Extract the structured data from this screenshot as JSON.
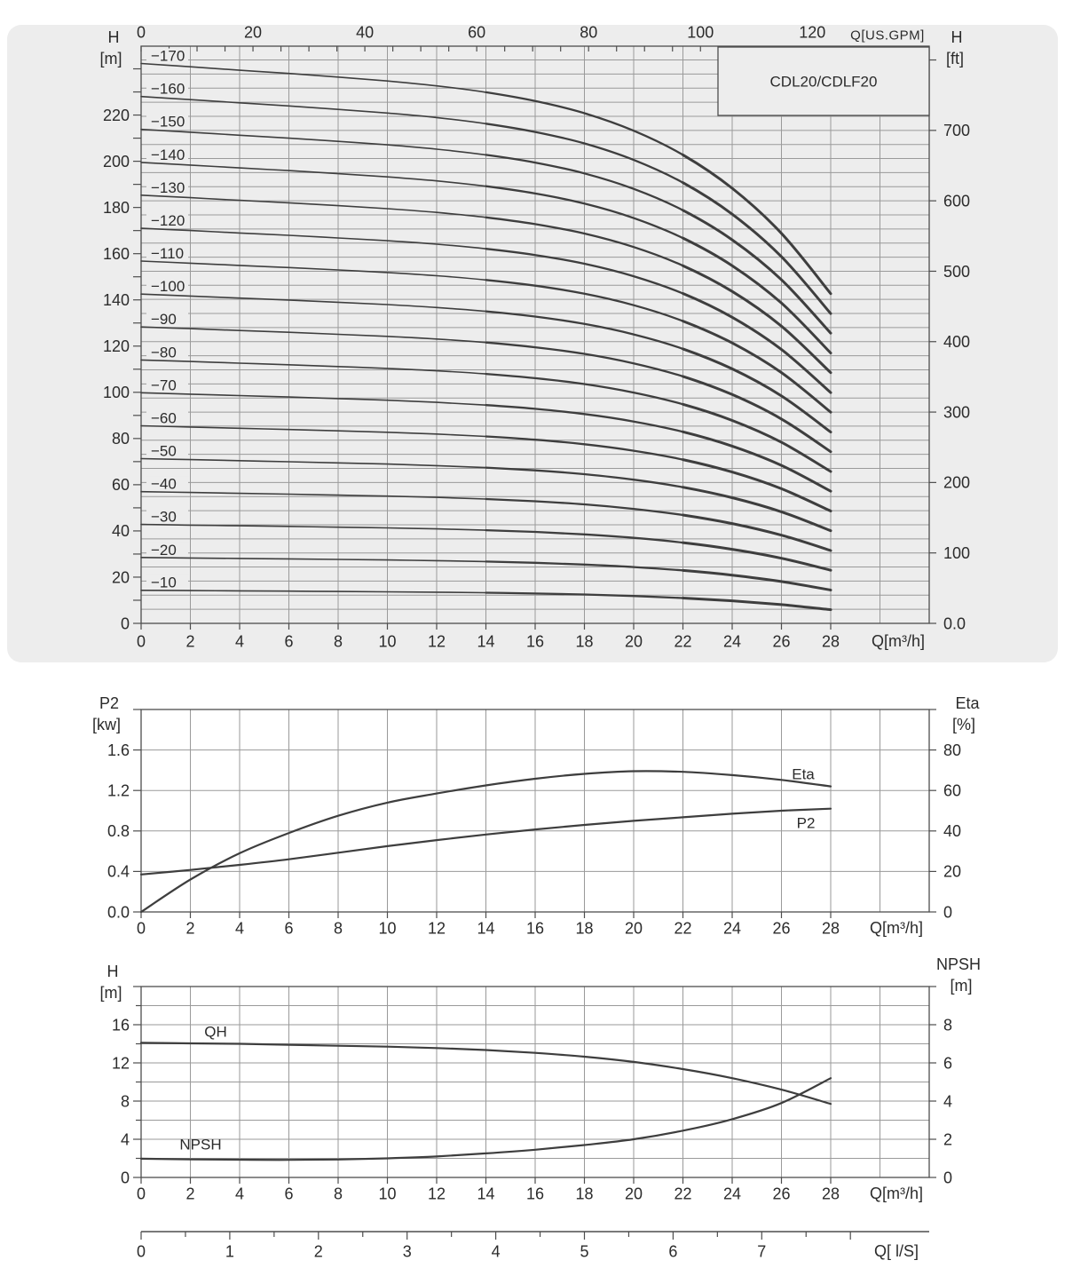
{
  "colors": {
    "page_bg": "#ffffff",
    "panel_bg": "#ededed",
    "grid": "#9a9a9a",
    "frame": "#4d4d4d",
    "curve": "#3e3e3e",
    "text": "#2b2b2b"
  },
  "labels": {
    "model": "CDL20/CDLF20",
    "h_left_1": "H",
    "h_left_2": "[m]",
    "gpm_title": "Q[US.GPM]",
    "h_right_1": "H",
    "h_right_2": "[ft]",
    "q_m3h": "Q[m³/h]",
    "p2_1": "P2",
    "p2_2": "[kw]",
    "eta_1": "Eta",
    "eta_2": "[%]",
    "eta_curve": "Eta",
    "p2_curve": "P2",
    "h_bottom_1": "H",
    "h_bottom_2": "[m]",
    "npsh_1": "NPSH",
    "npsh_2": "[m]",
    "qh_curve": "QH",
    "npsh_curve": "NPSH",
    "ls_title": "Q[ l/S]"
  },
  "chart_data": [
    {
      "id": "main_qh_family",
      "type": "line",
      "title": "CDL20/CDLF20",
      "x_axis_bottom": {
        "label": "Q[m³/h]",
        "ticks": [
          0,
          2,
          4,
          6,
          8,
          10,
          12,
          14,
          16,
          18,
          20,
          22,
          24,
          26,
          28
        ],
        "range": [
          0,
          32
        ],
        "grid_step": 2
      },
      "x_axis_top": {
        "label": "Q[US.GPM]",
        "ticks": [
          0,
          20,
          40,
          60,
          80,
          100,
          120
        ],
        "minor_step": 5,
        "max_tick": 140,
        "range": [
          0,
          140.9
        ]
      },
      "y_axis_left": {
        "label": "H [m]",
        "ticks": [
          0,
          20,
          40,
          60,
          80,
          100,
          120,
          140,
          160,
          180,
          200,
          220
        ],
        "minor_step": 10,
        "max_tick": 240,
        "range": [
          0,
          250
        ]
      },
      "y_axis_right": {
        "label": "H [ft]",
        "tick_labels": [
          "0.0",
          "100",
          "200",
          "300",
          "400",
          "500",
          "600",
          "700"
        ],
        "tick_step": 100,
        "max_tick": 800,
        "range": [
          0,
          820
        ],
        "grid_step_ft": 20
      },
      "q_samples": [
        0,
        2,
        4,
        6,
        8,
        10,
        12,
        14,
        16,
        18,
        20,
        22,
        24,
        26,
        28
      ],
      "drop_fraction": [
        0,
        0.014,
        0.029,
        0.043,
        0.059,
        0.076,
        0.097,
        0.125,
        0.163,
        0.216,
        0.292,
        0.397,
        0.542,
        0.738,
        1.0
      ],
      "series": [
        {
          "label": "−170",
          "h0": 242.3,
          "h_end": 142.7
        },
        {
          "label": "−160",
          "h0": 228.0,
          "h_end": 134.1
        },
        {
          "label": "−150",
          "h0": 213.8,
          "h_end": 125.6
        },
        {
          "label": "−140",
          "h0": 199.5,
          "h_end": 117.0
        },
        {
          "label": "−130",
          "h0": 185.3,
          "h_end": 108.5
        },
        {
          "label": "−120",
          "h0": 171.0,
          "h_end": 99.9
        },
        {
          "label": "−110",
          "h0": 156.8,
          "h_end": 91.4
        },
        {
          "label": "−100",
          "h0": 142.5,
          "h_end": 82.8
        },
        {
          "label": "−90",
          "h0": 128.3,
          "h_end": 74.3
        },
        {
          "label": "−80",
          "h0": 114.0,
          "h_end": 65.7
        },
        {
          "label": "−70",
          "h0": 99.8,
          "h_end": 57.2
        },
        {
          "label": "−60",
          "h0": 85.5,
          "h_end": 48.6
        },
        {
          "label": "−50",
          "h0": 71.3,
          "h_end": 40.1
        },
        {
          "label": "−40",
          "h0": 57.0,
          "h_end": 31.5
        },
        {
          "label": "−30",
          "h0": 42.8,
          "h_end": 23.0
        },
        {
          "label": "−20",
          "h0": 28.5,
          "h_end": 14.4
        },
        {
          "label": "−10",
          "h0": 14.3,
          "h_end": 5.9
        }
      ]
    },
    {
      "id": "power_efficiency",
      "type": "line",
      "x_axis_bottom": {
        "label": "Q[m³/h]",
        "ticks": [
          0,
          2,
          4,
          6,
          8,
          10,
          12,
          14,
          16,
          18,
          20,
          22,
          24,
          26,
          28
        ],
        "range": [
          0,
          32
        ],
        "grid_step": 2
      },
      "y_axis_left": {
        "label": "P2 [kw]",
        "tick_labels": [
          "0.0",
          "0.4",
          "0.8",
          "1.2",
          "1.6"
        ],
        "tick_step_kw": 0.4,
        "range": [
          0,
          2.0
        ]
      },
      "y_axis_right": {
        "label": "Eta [%]",
        "ticks": [
          0,
          20,
          40,
          60,
          80
        ],
        "tick_step": 20,
        "range": [
          0,
          100
        ]
      },
      "series": [
        {
          "label": "Eta",
          "axis": "right",
          "unit": "%",
          "q": [
            0,
            2,
            4,
            6,
            8,
            10,
            12,
            14,
            16,
            18,
            20,
            22,
            24,
            26,
            28
          ],
          "values": [
            0,
            16,
            29,
            39,
            47.5,
            54,
            58.5,
            62.5,
            65.8,
            68.2,
            69.5,
            69.2,
            67.6,
            65.2,
            62
          ]
        },
        {
          "label": "P2",
          "axis": "left",
          "unit": "kW",
          "q": [
            0,
            2,
            4,
            6,
            8,
            10,
            12,
            14,
            16,
            18,
            20,
            22,
            24,
            26,
            28
          ],
          "values": [
            0.37,
            0.415,
            0.465,
            0.52,
            0.585,
            0.65,
            0.71,
            0.765,
            0.815,
            0.86,
            0.9,
            0.935,
            0.97,
            1.0,
            1.02
          ]
        }
      ]
    },
    {
      "id": "qh_npsh_single_stage",
      "type": "line",
      "x_axis_bottom": {
        "label": "Q[m³/h]",
        "ticks": [
          0,
          2,
          4,
          6,
          8,
          10,
          12,
          14,
          16,
          18,
          20,
          22,
          24,
          26,
          28
        ],
        "range": [
          0,
          32
        ],
        "grid_step": 2
      },
      "y_axis_left": {
        "label": "H [m]",
        "ticks": [
          0,
          4,
          8,
          12,
          16
        ],
        "minor_step": 2,
        "range": [
          0,
          20
        ]
      },
      "y_axis_right": {
        "label": "NPSH [m]",
        "ticks": [
          0,
          2,
          4,
          6,
          8
        ],
        "minor_step": 2,
        "range": [
          0,
          10
        ]
      },
      "series": [
        {
          "label": "QH",
          "axis": "left",
          "unit": "m",
          "q": [
            0,
            2,
            4,
            6,
            8,
            10,
            12,
            14,
            16,
            18,
            20,
            22,
            24,
            26,
            28
          ],
          "values": [
            14.1,
            14.05,
            14.0,
            13.9,
            13.8,
            13.7,
            13.55,
            13.35,
            13.05,
            12.65,
            12.1,
            11.35,
            10.4,
            9.2,
            7.7
          ]
        },
        {
          "label": "NPSH",
          "axis": "right",
          "unit": "m",
          "q": [
            0,
            2,
            4,
            6,
            8,
            10,
            12,
            14,
            16,
            18,
            20,
            22,
            24,
            26,
            28
          ],
          "values": [
            0.98,
            0.95,
            0.93,
            0.92,
            0.94,
            1.0,
            1.1,
            1.26,
            1.45,
            1.7,
            2.0,
            2.45,
            3.05,
            3.9,
            5.2
          ]
        }
      ]
    }
  ],
  "ls_axis": {
    "label": "Q[ l/S]",
    "ticks": [
      0,
      1,
      2,
      3,
      4,
      5,
      6,
      7
    ],
    "minor_step": 0.5,
    "max_tick": 8,
    "range": [
      0,
      8.9
    ]
  }
}
